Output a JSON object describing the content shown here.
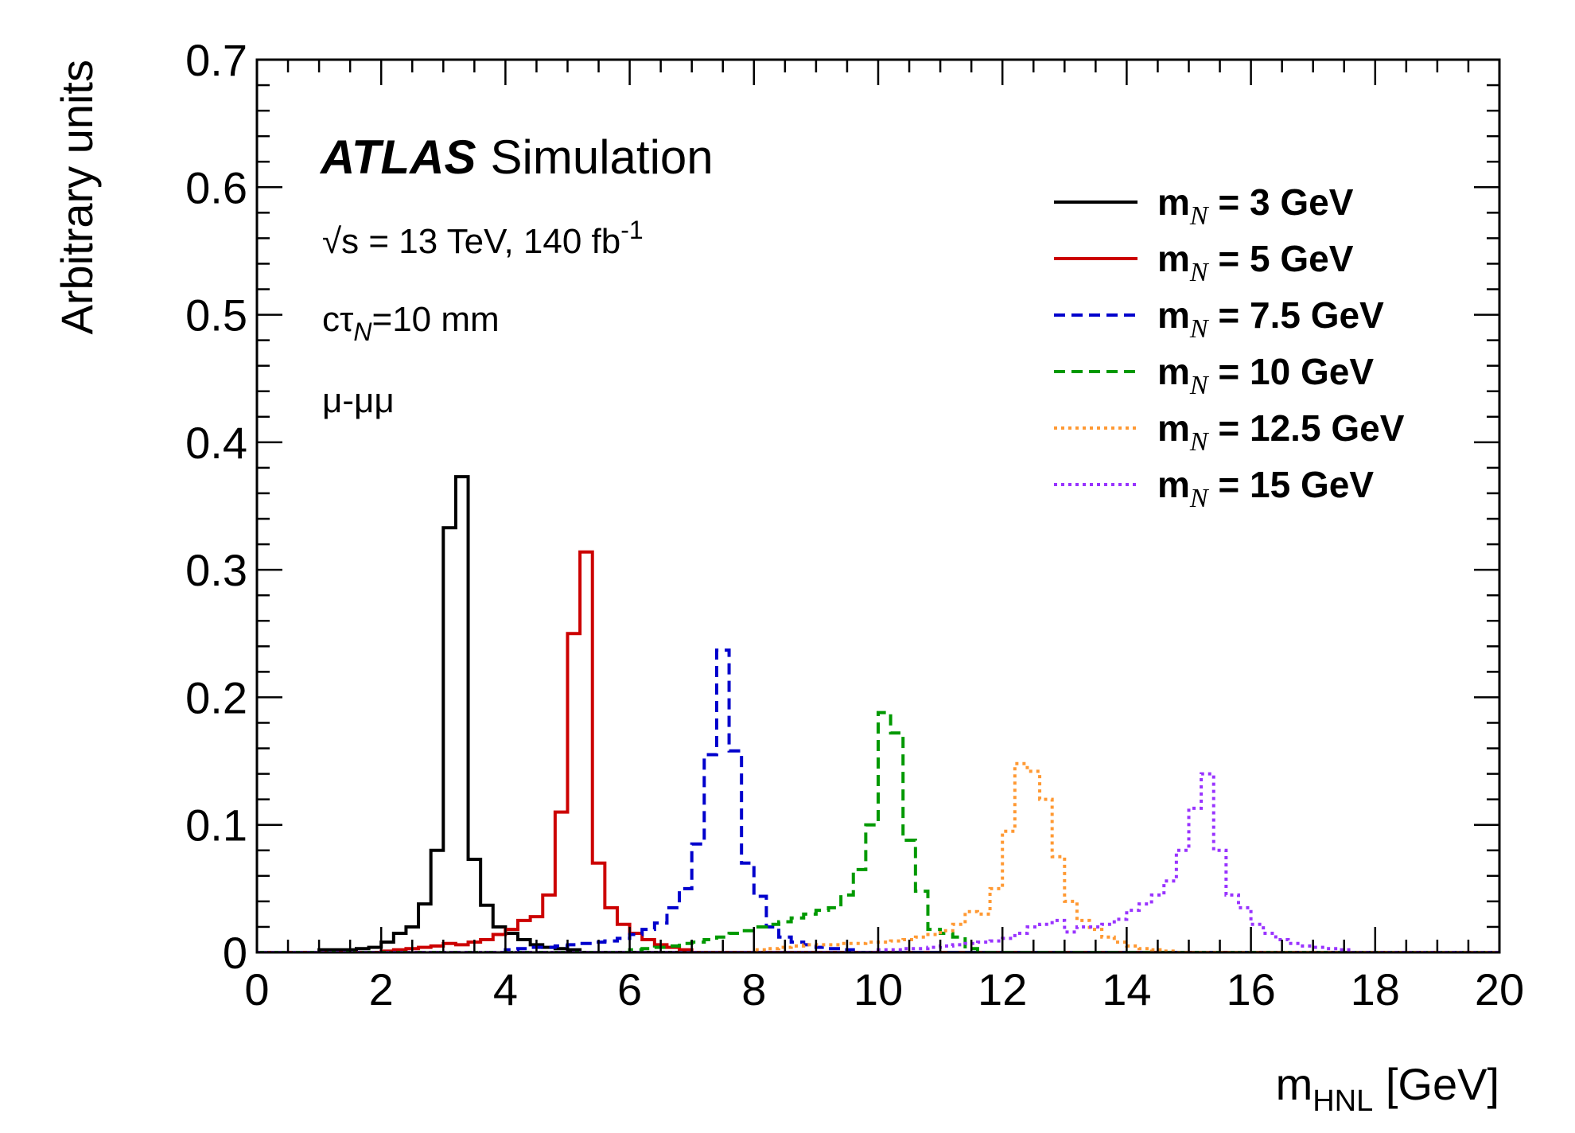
{
  "chart_data": {
    "type": "line",
    "step": true,
    "xlabel": "m",
    "xlabel_sub": "HNL",
    "xlabel_unit": " [GeV]",
    "ylabel": "Arbitrary units",
    "xlim": [
      0,
      20
    ],
    "ylim": [
      0,
      0.7
    ],
    "xticks": [
      "0",
      "2",
      "4",
      "6",
      "8",
      "10",
      "12",
      "14",
      "16",
      "18",
      "20"
    ],
    "yticks": [
      "0",
      "0.1",
      "0.2",
      "0.3",
      "0.4",
      "0.5",
      "0.6",
      "0.7"
    ],
    "grid": false,
    "legend_position": "top-right",
    "bin_width": 0.2,
    "annotations": {
      "atlas": "ATLAS",
      "simulation": "Simulation",
      "energy_prefix": "√s = 13 TeV, 140 fb",
      "energy_sup": "-1",
      "ctau_prefix": "cτ",
      "ctau_sub": "N",
      "ctau_value": "=10 mm",
      "channel": "μ-μμ"
    },
    "series": [
      {
        "name": "m",
        "sub": "N",
        "label_rest": " = 3 GeV",
        "color": "#000000",
        "style": "solid",
        "x": [
          1.0,
          1.2,
          1.4,
          1.6,
          1.8,
          2.0,
          2.2,
          2.4,
          2.6,
          2.8,
          3.0,
          3.2,
          3.4,
          3.6,
          3.8,
          4.0,
          4.2,
          4.4,
          4.6,
          4.8,
          5.0
        ],
        "y": [
          0.002,
          0.002,
          0.002,
          0.003,
          0.004,
          0.008,
          0.015,
          0.02,
          0.038,
          0.08,
          0.333,
          0.373,
          0.073,
          0.037,
          0.02,
          0.015,
          0.01,
          0.006,
          0.004,
          0.003,
          0.002
        ]
      },
      {
        "name": "m",
        "sub": "N",
        "label_rest": " = 5 GeV",
        "color": "#cc0000",
        "style": "solid",
        "x": [
          2.0,
          2.2,
          2.4,
          2.6,
          2.8,
          3.0,
          3.2,
          3.4,
          3.6,
          3.8,
          4.0,
          4.2,
          4.4,
          4.6,
          4.8,
          5.0,
          5.2,
          5.4,
          5.6,
          5.8,
          6.0,
          6.2,
          6.4,
          6.6,
          6.8
        ],
        "y": [
          0.001,
          0.002,
          0.003,
          0.004,
          0.005,
          0.007,
          0.006,
          0.008,
          0.01,
          0.014,
          0.018,
          0.025,
          0.028,
          0.045,
          0.11,
          0.25,
          0.314,
          0.07,
          0.035,
          0.022,
          0.015,
          0.01,
          0.006,
          0.004,
          0.002
        ]
      },
      {
        "name": "m",
        "sub": "N",
        "label_rest": " = 7.5 GeV",
        "color": "#0000cc",
        "style": "dashed",
        "x": [
          4.0,
          4.2,
          4.4,
          4.6,
          4.8,
          5.0,
          5.2,
          5.4,
          5.6,
          5.8,
          6.0,
          6.2,
          6.4,
          6.6,
          6.8,
          7.0,
          7.2,
          7.4,
          7.6,
          7.8,
          8.0,
          8.2,
          8.4,
          8.6,
          8.8,
          9.0,
          9.2,
          9.4
        ],
        "y": [
          0.002,
          0.003,
          0.004,
          0.004,
          0.005,
          0.006,
          0.007,
          0.008,
          0.009,
          0.011,
          0.014,
          0.018,
          0.023,
          0.035,
          0.05,
          0.085,
          0.155,
          0.237,
          0.158,
          0.07,
          0.044,
          0.02,
          0.012,
          0.008,
          0.006,
          0.004,
          0.003,
          0.002
        ]
      },
      {
        "name": "m",
        "sub": "N",
        "label_rest": " = 10 GeV",
        "color": "#009900",
        "style": "dashed",
        "x": [
          6.0,
          6.2,
          6.4,
          6.6,
          6.8,
          7.0,
          7.2,
          7.4,
          7.6,
          7.8,
          8.0,
          8.2,
          8.4,
          8.6,
          8.8,
          9.0,
          9.2,
          9.4,
          9.6,
          9.8,
          10.0,
          10.2,
          10.4,
          10.6,
          10.8,
          11.0,
          11.2,
          11.4
        ],
        "y": [
          0.002,
          0.003,
          0.004,
          0.005,
          0.007,
          0.008,
          0.01,
          0.012,
          0.015,
          0.017,
          0.02,
          0.022,
          0.024,
          0.027,
          0.03,
          0.033,
          0.035,
          0.045,
          0.065,
          0.1,
          0.188,
          0.172,
          0.088,
          0.048,
          0.018,
          0.015,
          0.012,
          0.003
        ]
      },
      {
        "name": "m",
        "sub": "N",
        "label_rest": " = 12.5 GeV",
        "color": "#ff9933",
        "style": "dotted",
        "x": [
          8.0,
          8.2,
          8.4,
          8.6,
          8.8,
          9.0,
          9.2,
          9.4,
          9.6,
          9.8,
          10.0,
          10.2,
          10.4,
          10.6,
          10.8,
          11.0,
          11.2,
          11.4,
          11.6,
          11.8,
          12.0,
          12.2,
          12.4,
          12.6,
          12.8,
          13.0,
          13.2,
          13.4,
          13.6,
          13.8,
          14.0,
          14.2,
          14.4,
          14.6
        ],
        "y": [
          0.002,
          0.003,
          0.004,
          0.005,
          0.006,
          0.006,
          0.006,
          0.007,
          0.007,
          0.008,
          0.008,
          0.009,
          0.01,
          0.012,
          0.014,
          0.017,
          0.022,
          0.032,
          0.03,
          0.05,
          0.095,
          0.148,
          0.142,
          0.12,
          0.075,
          0.04,
          0.025,
          0.018,
          0.012,
          0.008,
          0.005,
          0.003,
          0.002,
          0.001
        ]
      },
      {
        "name": "m",
        "sub": "N",
        "label_rest": " = 15 GeV",
        "color": "#9933ff",
        "style": "dotted",
        "x": [
          10.0,
          10.2,
          10.4,
          10.6,
          10.8,
          11.0,
          11.2,
          11.4,
          11.6,
          11.8,
          12.0,
          12.2,
          12.4,
          12.6,
          12.8,
          13.0,
          13.2,
          13.4,
          13.6,
          13.8,
          14.0,
          14.2,
          14.4,
          14.6,
          14.8,
          15.0,
          15.2,
          15.4,
          15.6,
          15.8,
          16.0,
          16.2,
          16.4,
          16.6,
          16.8,
          17.0,
          17.2,
          17.4
        ],
        "y": [
          0.002,
          0.002,
          0.003,
          0.003,
          0.004,
          0.005,
          0.006,
          0.007,
          0.008,
          0.009,
          0.011,
          0.015,
          0.02,
          0.022,
          0.025,
          0.016,
          0.02,
          0.02,
          0.022,
          0.026,
          0.033,
          0.038,
          0.045,
          0.056,
          0.08,
          0.113,
          0.14,
          0.08,
          0.045,
          0.035,
          0.022,
          0.015,
          0.01,
          0.007,
          0.005,
          0.004,
          0.003,
          0.002
        ]
      }
    ]
  }
}
